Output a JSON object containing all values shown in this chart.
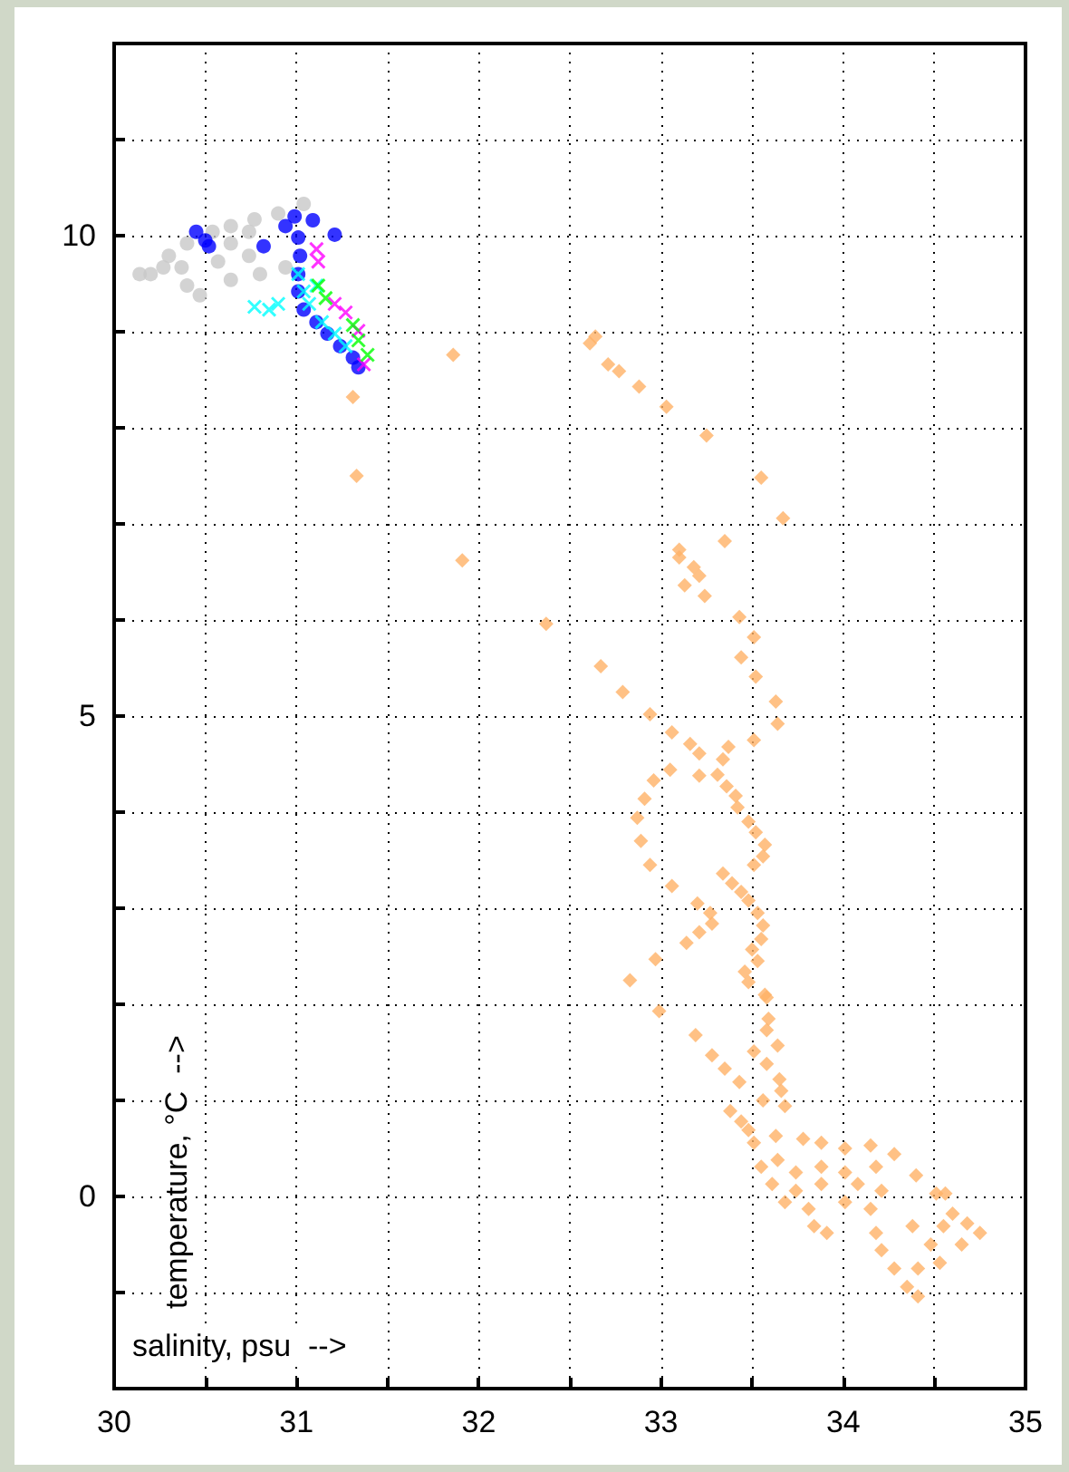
{
  "chart_data": {
    "type": "scatter",
    "xlabel": "salinity, psu  -->",
    "ylabel": "temperature, °C  -->",
    "xlim": [
      30,
      35
    ],
    "ylim": [
      -2,
      12
    ],
    "xticks": [
      30,
      {
        "value": 30.5,
        "label": null
      },
      31,
      {
        "value": 31.5,
        "label": null
      },
      32,
      {
        "value": 32.5,
        "label": null
      },
      33,
      {
        "value": 33.5,
        "label": null
      },
      34,
      {
        "value": 34.5,
        "label": null
      },
      35
    ],
    "yticks": [
      {
        "value": -2,
        "label": null
      },
      {
        "value": -1,
        "label": null
      },
      0,
      {
        "value": 1,
        "label": null
      },
      {
        "value": 2,
        "label": null
      },
      {
        "value": 3,
        "label": null
      },
      {
        "value": 4,
        "label": null
      },
      5,
      {
        "value": 6,
        "label": null
      },
      {
        "value": 7,
        "label": null
      },
      {
        "value": 8,
        "label": null
      },
      {
        "value": 9,
        "label": null
      },
      10,
      {
        "value": 11,
        "label": null
      },
      {
        "value": 12,
        "label": null
      }
    ],
    "grid": true,
    "series": [
      {
        "color": "#c8c8c8",
        "marker": "circle",
        "x": [
          30.14,
          30.27,
          30.3,
          30.4,
          30.54,
          30.64,
          30.77,
          30.9,
          31.04,
          30.4,
          30.47,
          30.64,
          30.8,
          30.94,
          30.57,
          30.74,
          30.64,
          30.37,
          30.2,
          30.74
        ],
        "values": [
          9.6,
          9.67,
          9.79,
          9.92,
          10.04,
          10.1,
          10.17,
          10.23,
          10.33,
          9.48,
          9.38,
          9.54,
          9.6,
          9.67,
          9.73,
          9.79,
          9.92,
          9.67,
          9.6,
          10.04
        ]
      },
      {
        "color": "#0000ff",
        "marker": "circle",
        "x": [
          30.45,
          30.5,
          30.52,
          30.82,
          30.94,
          30.99,
          31.09,
          31.21,
          31.01,
          31.02,
          31.01,
          31.01,
          31.04,
          31.11,
          31.17,
          31.24,
          31.31,
          31.34
        ],
        "values": [
          10.04,
          9.95,
          9.89,
          9.89,
          10.1,
          10.2,
          10.16,
          10.01,
          9.98,
          9.79,
          9.6,
          9.42,
          9.23,
          9.1,
          8.98,
          8.85,
          8.73,
          8.63
        ]
      },
      {
        "color": "#00ffff",
        "marker": "cross",
        "x": [
          30.77,
          30.85,
          30.9,
          31.01,
          31.04,
          31.07,
          31.14,
          31.21,
          31.27,
          31.11
        ],
        "values": [
          9.26,
          9.23,
          9.29,
          9.6,
          9.42,
          9.29,
          9.1,
          8.98,
          8.85,
          9.48
        ]
      },
      {
        "color": "#ff00ff",
        "marker": "cross",
        "x": [
          31.11,
          31.12,
          31.21,
          31.27,
          31.34,
          31.37
        ],
        "values": [
          9.86,
          9.73,
          9.29,
          9.2,
          9.01,
          8.66
        ]
      },
      {
        "color": "#00ff00",
        "marker": "cross",
        "x": [
          31.12,
          31.16,
          31.31,
          31.34,
          31.39
        ],
        "values": [
          9.48,
          9.35,
          9.07,
          8.91,
          8.76
        ]
      },
      {
        "color": "#ffb266",
        "marker": "diamond",
        "x": [
          31.86,
          31.31,
          31.33,
          31.91,
          32.37,
          32.64,
          32.61,
          32.71,
          32.77,
          32.88,
          33.03,
          33.25,
          33.55,
          33.67,
          33.35,
          33.1,
          33.1,
          33.18,
          33.21,
          33.13,
          33.24,
          33.43,
          33.51,
          33.44,
          33.52,
          33.63,
          33.64,
          33.51,
          32.67,
          32.79,
          32.94,
          33.06,
          33.16,
          33.21,
          33.37,
          33.34,
          33.31,
          33.21,
          33.36,
          33.41,
          33.42,
          33.05,
          32.96,
          32.91,
          32.87,
          32.89,
          32.94,
          33.06,
          33.48,
          33.52,
          33.57,
          33.56,
          33.51,
          33.34,
          33.39,
          33.44,
          33.48,
          33.2,
          33.27,
          33.28,
          33.21,
          33.14,
          32.97,
          32.83,
          33.53,
          33.56,
          33.55,
          33.5,
          33.53,
          33.46,
          33.48,
          33.57,
          32.99,
          33.19,
          33.28,
          33.35,
          33.43,
          33.38,
          33.44,
          33.48,
          33.51,
          33.55,
          33.58,
          33.59,
          33.58,
          33.64,
          33.51,
          33.58,
          33.65,
          33.66,
          33.56,
          33.68,
          33.63,
          33.78,
          33.88,
          34.01,
          34.15,
          34.28,
          34.4,
          33.64,
          33.74,
          33.88,
          34.01,
          34.18,
          33.61,
          33.74,
          33.88,
          34.08,
          34.21,
          33.68,
          33.81,
          34.01,
          34.15,
          33.84,
          33.91,
          34.18,
          34.21,
          34.28,
          34.35,
          34.41,
          34.38,
          34.48,
          34.55,
          34.68,
          34.75,
          34.65,
          34.53,
          34.41,
          34.51,
          34.56,
          34.6
        ],
        "values": [
          8.76,
          8.32,
          7.5,
          6.62,
          5.96,
          8.95,
          8.88,
          8.66,
          8.59,
          8.43,
          8.22,
          7.92,
          7.48,
          7.06,
          6.82,
          6.73,
          6.65,
          6.55,
          6.46,
          6.36,
          6.25,
          6.03,
          5.82,
          5.61,
          5.41,
          5.15,
          4.92,
          4.75,
          5.52,
          5.25,
          5.02,
          4.83,
          4.71,
          4.61,
          4.68,
          4.55,
          4.39,
          4.38,
          4.27,
          4.17,
          4.05,
          4.44,
          4.33,
          4.14,
          3.94,
          3.7,
          3.45,
          3.23,
          3.9,
          3.79,
          3.66,
          3.54,
          3.45,
          3.36,
          3.26,
          3.17,
          3.08,
          3.05,
          2.95,
          2.84,
          2.75,
          2.64,
          2.47,
          2.25,
          2.95,
          2.82,
          2.68,
          2.57,
          2.45,
          2.34,
          2.23,
          2.1,
          1.93,
          1.68,
          1.47,
          1.33,
          1.19,
          0.89,
          0.78,
          0.69,
          0.56,
          0.31,
          2.07,
          1.85,
          1.73,
          1.57,
          1.51,
          1.38,
          1.22,
          1.1,
          1.0,
          0.94,
          0.63,
          0.6,
          0.56,
          0.5,
          0.53,
          0.44,
          0.22,
          0.38,
          0.25,
          0.31,
          0.25,
          0.31,
          0.13,
          0.06,
          0.13,
          0.13,
          0.06,
          -0.06,
          -0.13,
          -0.06,
          -0.13,
          -0.31,
          -0.38,
          -0.38,
          -0.56,
          -0.75,
          -0.94,
          -1.04,
          -0.31,
          -0.5,
          -0.31,
          -0.28,
          -0.38,
          -0.5,
          -0.69,
          -0.75,
          0.03,
          0.03,
          -0.18
        ]
      }
    ]
  }
}
